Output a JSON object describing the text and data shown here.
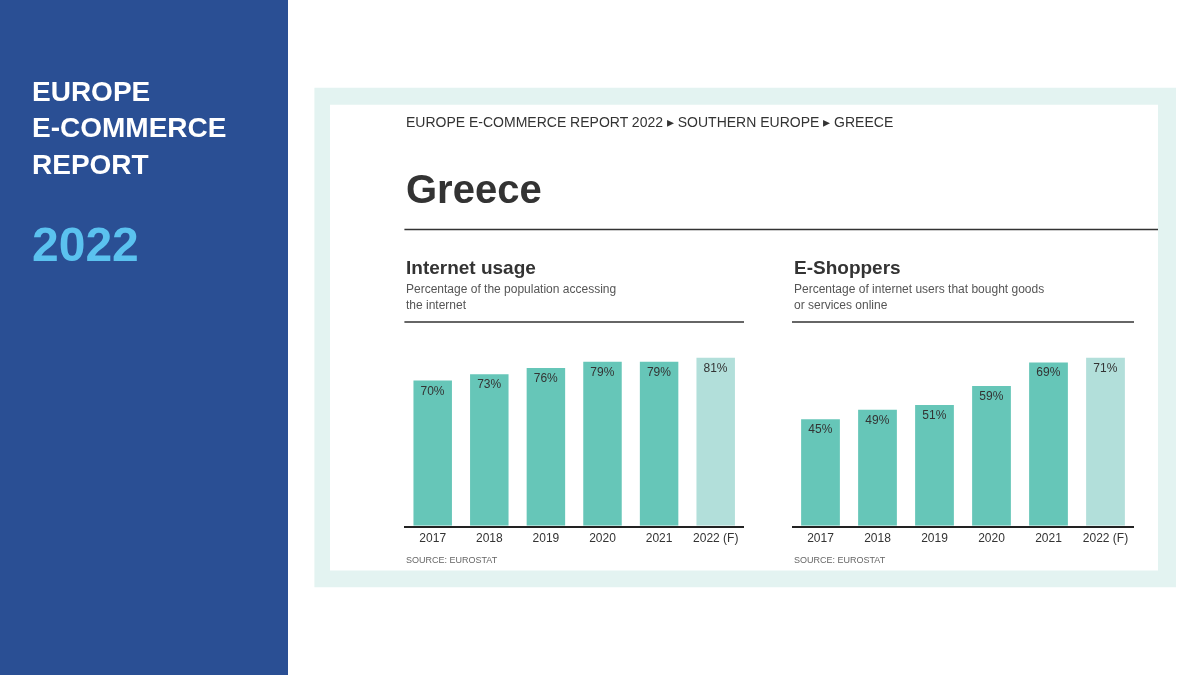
{
  "chart_data": [
    {
      "type": "other",
      "title": "EUROPE\nE-COMMERCE\nREPORT",
      "subtitle": "2022"
    },
    {
      "type": "other",
      "title": "Greece",
      "subtitle": "EUROPE E-COMMERCE REPORT 2022 ▸ SOUTHERN EUROPE ▸ GREECE"
    },
    {
      "type": "bar",
      "title": "Internet usage",
      "subtitle": "Percentage of the population accessing\nthe internet",
      "categories": [
        "2017",
        "2018",
        "2019",
        "2020",
        "2021",
        "2022 (F)"
      ],
      "values": [
        70,
        73,
        76,
        79,
        79,
        81
      ],
      "value_labels": [
        "70%",
        "73%",
        "76%",
        "79%",
        "79%",
        "81%"
      ],
      "colors": [
        "#66c6b8",
        "#66c6b8",
        "#66c6b8",
        "#66c6b8",
        "#66c6b8",
        "#b2dfda"
      ],
      "annotations": [
        "SOURCE: EUROSTAT"
      ]
    },
    {
      "type": "bar",
      "title": "E-Shoppers",
      "subtitle": "Percentage of internet users that bought goods\nor services online",
      "categories": [
        "2017",
        "2018",
        "2019",
        "2020",
        "2021",
        "2022 (F)"
      ],
      "values": [
        45,
        49,
        51,
        59,
        69,
        71
      ],
      "value_labels": [
        "45%",
        "49%",
        "51%",
        "59%",
        "69%",
        "71%"
      ],
      "colors": [
        "#66c6b8",
        "#66c6b8",
        "#66c6b8",
        "#66c6b8",
        "#66c6b8",
        "#b2dfda"
      ],
      "annotations": [
        "SOURCE: EUROSTAT"
      ]
    }
  ]
}
